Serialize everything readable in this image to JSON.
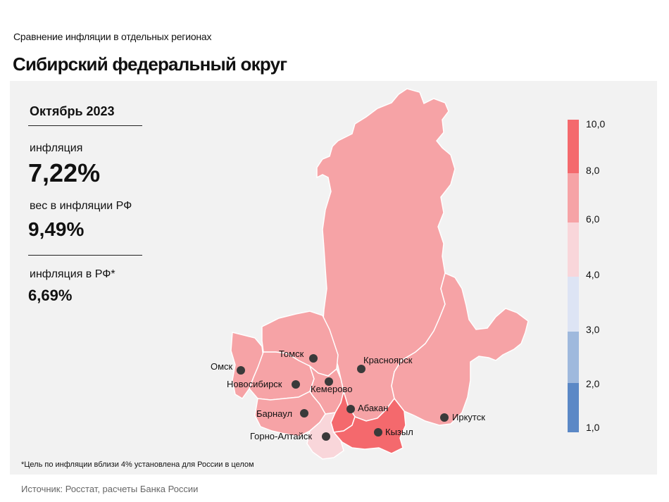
{
  "header": {
    "subtitle": "Сравнение  инфляции  в отдельных  регионах",
    "title": "Сибирский федеральный округ"
  },
  "stats": {
    "period": "Октябрь 2023",
    "inflation_label": "инфляция",
    "inflation_value": "7,22%",
    "weight_label": "вес в инфляции  РФ",
    "weight_value": "9,49%",
    "rf_label": "инфляция  в РФ*",
    "rf_value": "6,69%"
  },
  "footnote": "*Цель по инфляции вблизи 4% установлена для России в целом",
  "source": "Источник: Росстат, расчеты Банка России",
  "legend": {
    "ticks": [
      "10,0",
      "8,0",
      "6,0",
      "4,0",
      "3,0",
      "2,0",
      "1,0"
    ],
    "bands": [
      {
        "from": 8.0,
        "to": 10.0,
        "color": "#f4696d"
      },
      {
        "from": 6.0,
        "to": 8.0,
        "color": "#f6a3a6"
      },
      {
        "from": 4.0,
        "to": 6.0,
        "color": "#f9d6da"
      },
      {
        "from": 3.0,
        "to": 4.0,
        "color": "#dde4f4"
      },
      {
        "from": 2.0,
        "to": 3.0,
        "color": "#9fb9dd"
      },
      {
        "from": 1.0,
        "to": 2.0,
        "color": "#5b88c6"
      }
    ]
  },
  "cities": [
    {
      "name": "Томск"
    },
    {
      "name": "Омск"
    },
    {
      "name": "Красноярск"
    },
    {
      "name": "Новосибирск"
    },
    {
      "name": "Кемерово"
    },
    {
      "name": "Абакан"
    },
    {
      "name": "Барнаул"
    },
    {
      "name": "Кызыл"
    },
    {
      "name": "Иркутск"
    },
    {
      "name": "Горно-Алтайск"
    }
  ],
  "colors": {
    "medium": "#f6a3a6",
    "high": "#f4696d",
    "low": "#f9d6da",
    "dot": "#3a3a3a"
  }
}
